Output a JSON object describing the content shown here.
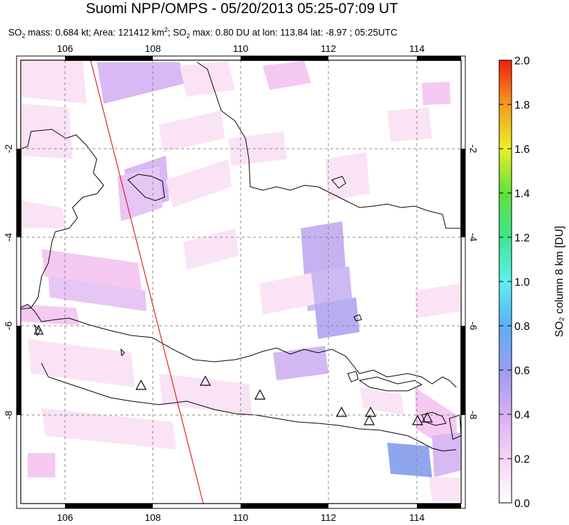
{
  "title": "Suomi NPP/OMPS - 05/20/2013 05:25-07:09 UT",
  "subtitle": {
    "so2_mass_label": "SO",
    "so2_mass_value": " mass: 0.684 kt; Area: 121412 km",
    "area_sup": "2",
    "so2_max_text": "; SO",
    "so2_max_rest": " max: 0.80 DU at lon: 113.84 lat: -8.97 ; 05:25UTC",
    "sub2": "2"
  },
  "map": {
    "lon_ticks": [
      "106",
      "108",
      "110",
      "112",
      "114"
    ],
    "lat_ticks": [
      "-2",
      "-4",
      "-6",
      "-8"
    ],
    "lon_range": [
      105,
      115
    ],
    "lat_range": [
      -10,
      0
    ],
    "grid": "dashed"
  },
  "colorbar": {
    "label": "SO₂ column 8 km [DU]",
    "ticks": [
      "2.0",
      "1.8",
      "1.6",
      "1.4",
      "1.2",
      "1.0",
      "0.8",
      "0.6",
      "0.4",
      "0.2",
      "0.0"
    ],
    "min": 0.0,
    "max": 2.0
  },
  "volcanoes": [
    {
      "lon": 105.4,
      "lat": -6.1
    },
    {
      "lon": 107.7,
      "lat": -7.3
    },
    {
      "lon": 109.2,
      "lat": -7.2
    },
    {
      "lon": 110.4,
      "lat": -7.5
    },
    {
      "lon": 112.3,
      "lat": -7.9
    },
    {
      "lon": 112.9,
      "lat": -7.9
    },
    {
      "lon": 112.9,
      "lat": -8.1
    },
    {
      "lon": 114.0,
      "lat": -8.1
    },
    {
      "lon": 114.2,
      "lat": -8.0
    }
  ],
  "colors": {
    "swath_edge": "#dd2222",
    "pixel_light": "#fbe3f6",
    "pixel_pink": "#f5c9f1",
    "pixel_lavender": "#d8b9f3",
    "pixel_purple": "#c6b2f0",
    "pixel_blue": "#8fa6ee"
  }
}
